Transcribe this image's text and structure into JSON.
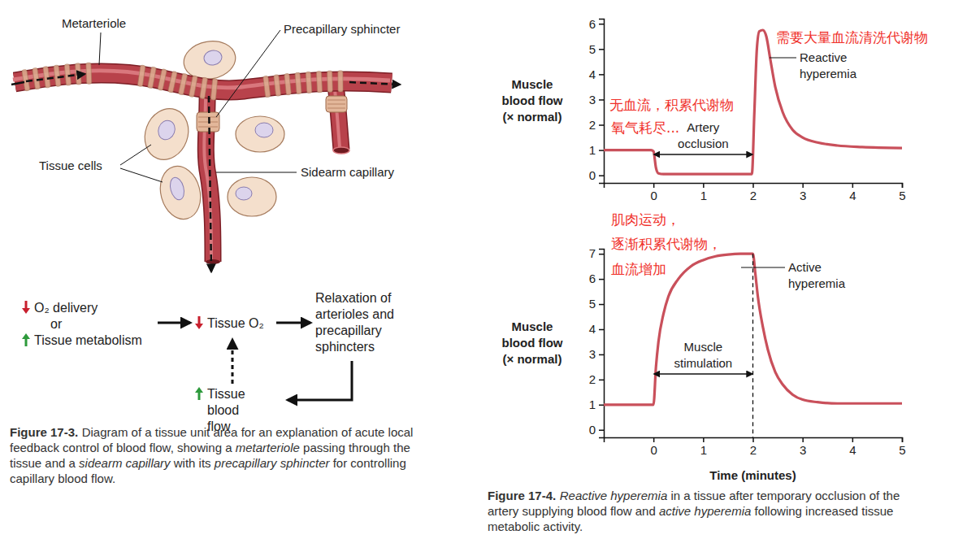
{
  "chart_data": [
    {
      "type": "line",
      "x": [
        -1,
        -0.05,
        0,
        0.05,
        0.1,
        0.2,
        1,
        1.98,
        2.03,
        2.08,
        2.13,
        2.2,
        2.27,
        2.35,
        2.45,
        2.6,
        2.8,
        3,
        3.3,
        3.7,
        4.2,
        5
      ],
      "values": [
        1,
        1,
        0.95,
        0.3,
        0.08,
        0.05,
        0.05,
        0.05,
        2.5,
        5,
        5.7,
        5.75,
        5.5,
        4.6,
        3.5,
        2.5,
        1.8,
        1.5,
        1.3,
        1.18,
        1.12,
        1.08
      ],
      "color": "#c9505b",
      "ylabel": "Muscle blood flow (× normal)",
      "xlim": [
        -1,
        5
      ],
      "xticks": [
        0,
        1,
        2,
        3,
        4,
        5
      ],
      "ylim": [
        -0.3,
        6.2
      ],
      "yticks": [
        0,
        1,
        2,
        3,
        4,
        5,
        6
      ],
      "grid": false,
      "annotations": [
        {
          "type": "span",
          "text": "Artery occlusion",
          "x": [
            0,
            2
          ]
        },
        {
          "type": "label",
          "text": "Reactive hyperemia"
        }
      ],
      "notes": [
        {
          "text": "需要大量血流清洗代谢物",
          "color": "#f0302a"
        },
        {
          "text": "无血流，积累代谢物",
          "color": "#f0302a"
        },
        {
          "text": "氧气耗尽...",
          "color": "#f0302a"
        }
      ]
    },
    {
      "type": "line",
      "x": [
        -1,
        -0.02,
        0,
        0.05,
        0.1,
        0.2,
        0.3,
        0.5,
        0.75,
        1,
        1.25,
        1.5,
        1.75,
        2,
        2.05,
        2.1,
        2.2,
        2.3,
        2.45,
        2.6,
        2.8,
        3,
        3.3,
        3.7,
        5
      ],
      "values": [
        1,
        1,
        1,
        2.5,
        3.5,
        4.6,
        5.3,
        6,
        6.5,
        6.75,
        6.9,
        6.97,
        7,
        7,
        6.2,
        5.3,
        4.1,
        3.2,
        2.3,
        1.8,
        1.4,
        1.2,
        1.1,
        1.05,
        1.05
      ],
      "color": "#c9505b",
      "ylabel": "Muscle blood flow (× normal)",
      "xlabel": "Time (minutes)",
      "xlim": [
        -1,
        5
      ],
      "xticks": [
        0,
        1,
        2,
        3,
        4,
        5
      ],
      "ylim": [
        -0.3,
        7.2
      ],
      "yticks": [
        0,
        1,
        2,
        3,
        4,
        5,
        6,
        7
      ],
      "grid": false,
      "annotations": [
        {
          "type": "label",
          "text": "Active hyperemia"
        },
        {
          "type": "span",
          "text": "Muscle stimulation",
          "x": [
            0,
            2
          ],
          "line_style": "dashed"
        }
      ],
      "notes": [
        {
          "text": "肌肉运动，",
          "color": "#f0302a"
        },
        {
          "text": "逐渐积累代谢物，",
          "color": "#f0302a"
        },
        {
          "text": "血流增加",
          "color": "#f0302a"
        }
      ]
    }
  ],
  "figure_17_3": {
    "labels": {
      "metarteriole": "Metarteriole",
      "precapillary_sphincter": "Precapillary sphincter",
      "tissue_cells": "Tissue cells",
      "sidearm_capillary": "Sidearm capillary"
    },
    "flow": {
      "causes": [
        {
          "text": "O₂ delivery",
          "direction": "down",
          "color": "#c8202e"
        },
        {
          "text": "Tissue metabolism",
          "direction": "up",
          "color": "#2e9a3c"
        }
      ],
      "connector": "or",
      "tissue_o2": {
        "text": "Tissue O₂",
        "direction": "down",
        "color": "#c8202e"
      },
      "response": "Relaxation of arterioles and precapillary sphincters",
      "blood_flow": {
        "text": "Tissue blood flow",
        "direction": "up",
        "color": "#2e9a3c"
      }
    },
    "caption": {
      "label": "Figure 17-3.",
      "segments": [
        {
          "text": "Diagram of a tissue unit area for an explanation of acute local feedback control of blood flow, showing a "
        },
        {
          "text": "metarteriole",
          "italic": true
        },
        {
          "text": " passing through the tissue and a "
        },
        {
          "text": "sidearm capillary",
          "italic": true
        },
        {
          "text": " with its "
        },
        {
          "text": "precapillary sphincter",
          "italic": true
        },
        {
          "text": " for controlling capillary blood flow."
        }
      ]
    }
  },
  "figure_17_4": {
    "caption": {
      "label": "Figure 17-4.",
      "segments": [
        {
          "text": "Reactive hyperemia",
          "italic": true
        },
        {
          "text": " in a tissue after temporary occlusion of the artery supplying blood flow and "
        },
        {
          "text": "active hyperemia",
          "italic": true
        },
        {
          "text": " following increased tissue metabolic activity."
        }
      ]
    }
  }
}
